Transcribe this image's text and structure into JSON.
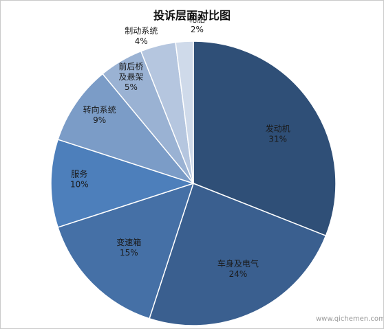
{
  "chart_data": {
    "type": "pie",
    "title": "投诉层面对比图",
    "unit": "%",
    "categories": [
      "发动机",
      "车身及电气",
      "变速箱",
      "服务",
      "转向系统",
      "前后桥及悬架",
      "制动系统",
      "轮胎"
    ],
    "values": [
      31,
      24,
      15,
      10,
      9,
      5,
      4,
      2
    ],
    "labels": [
      {
        "name_lines": [
          "发动机"
        ],
        "percent": "31%"
      },
      {
        "name_lines": [
          "车身及电气"
        ],
        "percent": "24%"
      },
      {
        "name_lines": [
          "变速箱"
        ],
        "percent": "15%"
      },
      {
        "name_lines": [
          "服务"
        ],
        "percent": "10%"
      },
      {
        "name_lines": [
          "转向系统"
        ],
        "percent": "9%"
      },
      {
        "name_lines": [
          "前后桥",
          "及悬架"
        ],
        "percent": "5%"
      },
      {
        "name_lines": [
          "制动系统"
        ],
        "percent": "4%"
      },
      {
        "name_lines": [
          "轮胎"
        ],
        "percent": "2%"
      }
    ],
    "colors": [
      "#2f4f77",
      "#3a5f8f",
      "#4570a6",
      "#4d7fbb",
      "#7b9cc7",
      "#9ab2d3",
      "#b5c6df",
      "#cfdaea"
    ],
    "start": "12 o'clock",
    "direction": "clockwise",
    "legend": "none"
  },
  "watermark": "www.qichemen.com"
}
